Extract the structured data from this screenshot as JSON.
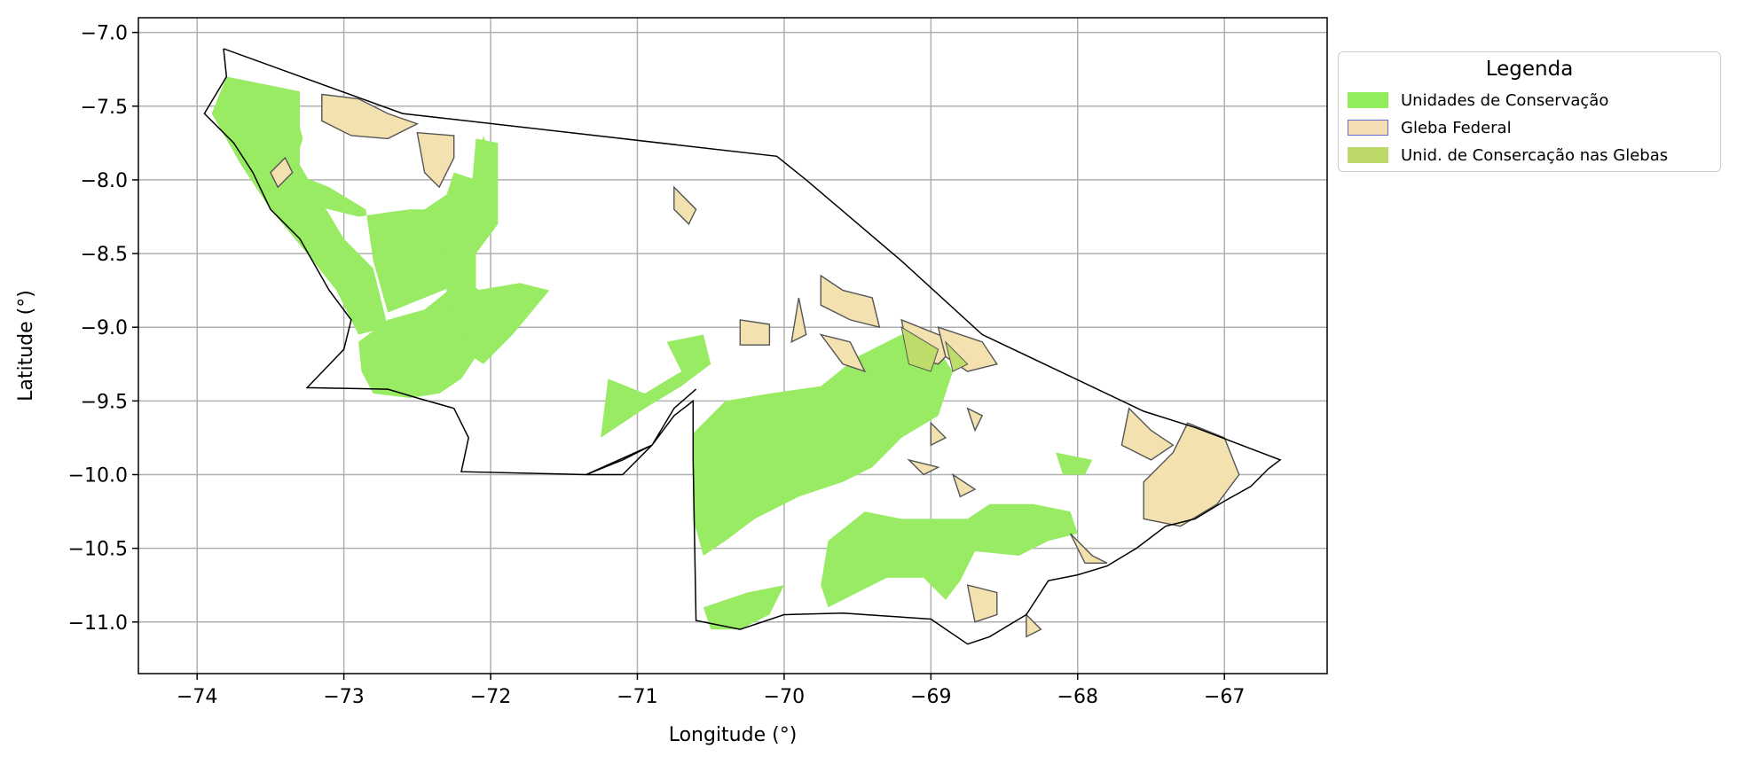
{
  "chart_data": {
    "type": "map",
    "xlabel": "Longitude (°)",
    "ylabel": "Latitude (°)",
    "xlim": [
      -74.4,
      -66.3
    ],
    "ylim": [
      -11.35,
      -6.9
    ],
    "xticks": [
      -74,
      -73,
      -72,
      -71,
      -70,
      -69,
      -68,
      -67
    ],
    "yticks": [
      -7.0,
      -7.5,
      -8.0,
      -8.5,
      -9.0,
      -9.5,
      -10.0,
      -10.5,
      -11.0
    ],
    "xtick_labels": [
      "−74",
      "−73",
      "−72",
      "−71",
      "−70",
      "−69",
      "−68",
      "−67"
    ],
    "ytick_labels": [
      "−7.0",
      "−7.5",
      "−8.0",
      "−8.5",
      "−9.0",
      "−9.5",
      "−10.0",
      "−10.5",
      "−11.0"
    ],
    "grid": true,
    "legend_placement": "outside-upper-right",
    "legend": {
      "title": "Legenda",
      "entries": [
        {
          "label": "Unidades de Conservação",
          "fill": "#90ee5a",
          "edge": "#90ee5a"
        },
        {
          "label": "Gleba Federal",
          "fill": "#f5deb3",
          "edge": "#6a6ae0"
        },
        {
          "label": "Unid. de Consercação nas Glebas",
          "fill": "#bcd96a",
          "edge": "#bcd96a"
        }
      ]
    },
    "colors": {
      "conservation": "#98eb63",
      "gleba": "#f3e1b0",
      "gleba_edge": "#555555",
      "overlap": "#bedc6a",
      "boundary": "#000000",
      "grid": "#b0b0b0"
    },
    "boundary": [
      [
        -73.82,
        -7.11
      ],
      [
        -72.6,
        -7.55
      ],
      [
        -70.05,
        -7.84
      ],
      [
        -69.85,
        -8.0
      ],
      [
        -69.2,
        -8.55
      ],
      [
        -68.65,
        -9.05
      ],
      [
        -67.55,
        -9.57
      ],
      [
        -67.2,
        -9.68
      ],
      [
        -66.62,
        -9.9
      ],
      [
        -66.7,
        -9.96
      ],
      [
        -66.82,
        -10.08
      ],
      [
        -67.0,
        -10.18
      ],
      [
        -67.2,
        -10.3
      ],
      [
        -67.4,
        -10.35
      ],
      [
        -67.6,
        -10.5
      ],
      [
        -67.8,
        -10.62
      ],
      [
        -68.0,
        -10.68
      ],
      [
        -68.2,
        -10.72
      ],
      [
        -68.35,
        -10.95
      ],
      [
        -68.6,
        -11.1
      ],
      [
        -68.75,
        -11.15
      ],
      [
        -69.0,
        -10.98
      ],
      [
        -69.3,
        -10.96
      ],
      [
        -69.6,
        -10.94
      ],
      [
        -70.0,
        -10.95
      ],
      [
        -70.3,
        -11.05
      ],
      [
        -70.6,
        -10.99
      ],
      [
        -70.62,
        -9.9
      ],
      [
        -70.62,
        -9.5
      ],
      [
        -70.75,
        -9.6
      ],
      [
        -70.9,
        -9.8
      ],
      [
        -71.1,
        -9.9
      ],
      [
        -71.35,
        -10.0
      ],
      [
        -71.1,
        -10.0
      ],
      [
        -70.9,
        -9.8
      ],
      [
        -70.75,
        -9.55
      ],
      [
        -70.6,
        -9.42
      ],
      [
        -70.75,
        -9.55
      ],
      [
        -70.9,
        -9.8
      ],
      [
        -71.35,
        -10.0
      ],
      [
        -72.2,
        -9.98
      ],
      [
        -72.15,
        -9.75
      ],
      [
        -72.25,
        -9.55
      ],
      [
        -72.5,
        -9.48
      ],
      [
        -72.7,
        -9.42
      ],
      [
        -73.25,
        -9.41
      ],
      [
        -73.0,
        -9.15
      ],
      [
        -72.95,
        -8.95
      ],
      [
        -73.1,
        -8.75
      ],
      [
        -73.3,
        -8.4
      ],
      [
        -73.5,
        -8.2
      ],
      [
        -73.62,
        -7.95
      ],
      [
        -73.75,
        -7.75
      ],
      [
        -73.95,
        -7.55
      ],
      [
        -73.8,
        -7.3
      ],
      [
        -73.82,
        -7.11
      ]
    ],
    "conservation_units": [
      [
        [
          -73.72,
          -7.32
        ],
        [
          -73.35,
          -7.45
        ],
        [
          -73.28,
          -7.72
        ],
        [
          -73.35,
          -7.95
        ],
        [
          -73.1,
          -8.05
        ],
        [
          -72.85,
          -8.2
        ],
        [
          -72.8,
          -8.55
        ],
        [
          -72.7,
          -8.9
        ],
        [
          -72.4,
          -8.78
        ],
        [
          -72.2,
          -8.7
        ],
        [
          -72.3,
          -8.5
        ],
        [
          -72.1,
          -8.35
        ],
        [
          -72.0,
          -8.05
        ],
        [
          -71.95,
          -7.95
        ],
        [
          -72.05,
          -7.7
        ],
        [
          -72.1,
          -8.0
        ],
        [
          -72.25,
          -7.95
        ],
        [
          -72.3,
          -8.1
        ],
        [
          -72.45,
          -8.2
        ],
        [
          -72.55,
          -8.2
        ],
        [
          -72.7,
          -8.22
        ],
        [
          -72.9,
          -8.25
        ],
        [
          -73.1,
          -8.2
        ],
        [
          -73.4,
          -8.1
        ],
        [
          -73.6,
          -7.9
        ],
        [
          -73.72,
          -7.7
        ],
        [
          -73.88,
          -7.5
        ],
        [
          -73.72,
          -7.32
        ]
      ],
      [
        [
          -72.05,
          -7.75
        ],
        [
          -71.95,
          -7.97
        ],
        [
          -72.05,
          -8.3
        ],
        [
          -72.2,
          -8.45
        ],
        [
          -72.3,
          -8.55
        ],
        [
          -72.15,
          -8.7
        ],
        [
          -72.0,
          -8.8
        ],
        [
          -71.8,
          -8.75
        ],
        [
          -71.75,
          -8.85
        ],
        [
          -71.95,
          -9.0
        ],
        [
          -72.1,
          -9.2
        ],
        [
          -72.2,
          -9.35
        ],
        [
          -72.35,
          -9.45
        ],
        [
          -72.55,
          -9.48
        ],
        [
          -72.8,
          -9.45
        ],
        [
          -72.88,
          -9.3
        ],
        [
          -72.9,
          -9.1
        ],
        [
          -72.7,
          -8.95
        ],
        [
          -72.45,
          -8.88
        ],
        [
          -72.25,
          -8.72
        ],
        [
          -72.15,
          -8.55
        ],
        [
          -72.05,
          -8.3
        ],
        [
          -72.0,
          -8.05
        ],
        [
          -72.05,
          -7.75
        ]
      ],
      [
        [
          -73.8,
          -7.3
        ],
        [
          -73.3,
          -7.4
        ],
        [
          -73.3,
          -7.9
        ],
        [
          -73.0,
          -8.4
        ],
        [
          -72.8,
          -8.6
        ],
        [
          -72.7,
          -9.0
        ],
        [
          -72.9,
          -9.05
        ],
        [
          -73.05,
          -8.75
        ],
        [
          -73.25,
          -8.5
        ],
        [
          -73.5,
          -8.2
        ],
        [
          -73.7,
          -7.9
        ],
        [
          -73.9,
          -7.55
        ],
        [
          -73.8,
          -7.3
        ]
      ],
      [
        [
          -72.1,
          -7.72
        ],
        [
          -71.95,
          -7.75
        ],
        [
          -71.95,
          -8.3
        ],
        [
          -72.1,
          -8.5
        ],
        [
          -72.1,
          -8.75
        ],
        [
          -71.8,
          -8.7
        ],
        [
          -71.6,
          -8.75
        ],
        [
          -71.85,
          -9.05
        ],
        [
          -72.05,
          -9.25
        ],
        [
          -72.2,
          -9.15
        ],
        [
          -72.1,
          -8.95
        ],
        [
          -72.3,
          -8.85
        ],
        [
          -72.3,
          -8.5
        ],
        [
          -72.15,
          -8.3
        ],
        [
          -72.1,
          -7.72
        ]
      ],
      [
        [
          -71.2,
          -9.35
        ],
        [
          -70.95,
          -9.45
        ],
        [
          -70.7,
          -9.3
        ],
        [
          -70.8,
          -9.1
        ],
        [
          -70.55,
          -9.05
        ],
        [
          -70.5,
          -9.25
        ],
        [
          -70.7,
          -9.4
        ],
        [
          -70.95,
          -9.55
        ],
        [
          -71.25,
          -9.75
        ],
        [
          -71.2,
          -9.35
        ]
      ],
      [
        [
          -70.62,
          -9.72
        ],
        [
          -70.4,
          -9.5
        ],
        [
          -70.1,
          -9.45
        ],
        [
          -69.75,
          -9.4
        ],
        [
          -69.5,
          -9.2
        ],
        [
          -69.2,
          -9.05
        ],
        [
          -68.95,
          -9.15
        ],
        [
          -68.85,
          -9.3
        ],
        [
          -68.95,
          -9.6
        ],
        [
          -69.2,
          -9.75
        ],
        [
          -69.4,
          -9.95
        ],
        [
          -69.6,
          -10.05
        ],
        [
          -69.9,
          -10.15
        ],
        [
          -70.2,
          -10.3
        ],
        [
          -70.4,
          -10.45
        ],
        [
          -70.55,
          -10.55
        ],
        [
          -70.62,
          -10.3
        ],
        [
          -70.62,
          -9.72
        ]
      ],
      [
        [
          -69.7,
          -10.45
        ],
        [
          -69.45,
          -10.25
        ],
        [
          -69.2,
          -10.3
        ],
        [
          -69.0,
          -10.3
        ],
        [
          -68.75,
          -10.3
        ],
        [
          -68.6,
          -10.2
        ],
        [
          -68.3,
          -10.2
        ],
        [
          -68.05,
          -10.25
        ],
        [
          -68.0,
          -10.4
        ],
        [
          -68.2,
          -10.45
        ],
        [
          -68.4,
          -10.55
        ],
        [
          -68.7,
          -10.52
        ],
        [
          -68.8,
          -10.72
        ],
        [
          -68.9,
          -10.85
        ],
        [
          -69.05,
          -10.7
        ],
        [
          -69.3,
          -10.7
        ],
        [
          -69.5,
          -10.8
        ],
        [
          -69.7,
          -10.9
        ],
        [
          -69.75,
          -10.75
        ],
        [
          -69.7,
          -10.45
        ]
      ],
      [
        [
          -70.55,
          -10.9
        ],
        [
          -70.5,
          -11.05
        ],
        [
          -70.3,
          -11.05
        ],
        [
          -70.1,
          -10.95
        ],
        [
          -70.0,
          -10.75
        ],
        [
          -70.25,
          -10.8
        ],
        [
          -70.55,
          -10.9
        ]
      ],
      [
        [
          -68.15,
          -9.85
        ],
        [
          -67.9,
          -9.9
        ],
        [
          -67.95,
          -10.0
        ],
        [
          -68.1,
          -10.0
        ],
        [
          -68.15,
          -9.85
        ]
      ]
    ],
    "federal_glebas": [
      [
        [
          -73.15,
          -7.42
        ],
        [
          -72.9,
          -7.45
        ],
        [
          -72.7,
          -7.55
        ],
        [
          -72.5,
          -7.62
        ],
        [
          -72.7,
          -7.72
        ],
        [
          -72.95,
          -7.7
        ],
        [
          -73.15,
          -7.6
        ],
        [
          -73.15,
          -7.42
        ]
      ],
      [
        [
          -72.5,
          -7.68
        ],
        [
          -72.25,
          -7.7
        ],
        [
          -72.25,
          -7.85
        ],
        [
          -72.35,
          -8.05
        ],
        [
          -72.45,
          -7.95
        ],
        [
          -72.5,
          -7.68
        ]
      ],
      [
        [
          -73.4,
          -7.85
        ],
        [
          -73.5,
          -7.95
        ],
        [
          -73.45,
          -8.05
        ],
        [
          -73.35,
          -7.95
        ],
        [
          -73.4,
          -7.85
        ]
      ],
      [
        [
          -69.75,
          -8.65
        ],
        [
          -69.6,
          -8.75
        ],
        [
          -69.4,
          -8.8
        ],
        [
          -69.35,
          -9.0
        ],
        [
          -69.55,
          -8.95
        ],
        [
          -69.75,
          -8.85
        ],
        [
          -69.75,
          -8.65
        ]
      ],
      [
        [
          -70.3,
          -8.95
        ],
        [
          -70.1,
          -8.98
        ],
        [
          -70.1,
          -9.12
        ],
        [
          -70.3,
          -9.12
        ],
        [
          -70.3,
          -8.95
        ]
      ],
      [
        [
          -69.9,
          -8.8
        ],
        [
          -69.95,
          -9.1
        ],
        [
          -69.85,
          -9.05
        ],
        [
          -69.9,
          -8.8
        ]
      ],
      [
        [
          -69.75,
          -9.05
        ],
        [
          -69.55,
          -9.1
        ],
        [
          -69.45,
          -9.3
        ],
        [
          -69.6,
          -9.25
        ],
        [
          -69.75,
          -9.05
        ]
      ],
      [
        [
          -69.2,
          -8.95
        ],
        [
          -68.95,
          -9.05
        ],
        [
          -68.8,
          -9.1
        ],
        [
          -68.95,
          -9.25
        ],
        [
          -69.15,
          -9.2
        ],
        [
          -69.2,
          -8.95
        ]
      ],
      [
        [
          -68.95,
          -9.0
        ],
        [
          -68.65,
          -9.1
        ],
        [
          -68.55,
          -9.25
        ],
        [
          -68.75,
          -9.3
        ],
        [
          -68.9,
          -9.2
        ],
        [
          -68.95,
          -9.0
        ]
      ],
      [
        [
          -67.65,
          -9.55
        ],
        [
          -67.5,
          -9.7
        ],
        [
          -67.35,
          -9.8
        ],
        [
          -67.5,
          -9.9
        ],
        [
          -67.7,
          -9.8
        ],
        [
          -67.65,
          -9.55
        ]
      ],
      [
        [
          -67.25,
          -9.65
        ],
        [
          -67.0,
          -9.75
        ],
        [
          -66.9,
          -10.0
        ],
        [
          -67.05,
          -10.2
        ],
        [
          -67.3,
          -10.35
        ],
        [
          -67.55,
          -10.3
        ],
        [
          -67.55,
          -10.05
        ],
        [
          -67.35,
          -9.85
        ],
        [
          -67.25,
          -9.65
        ]
      ],
      [
        [
          -68.75,
          -10.75
        ],
        [
          -68.55,
          -10.8
        ],
        [
          -68.55,
          -10.95
        ],
        [
          -68.7,
          -11.0
        ],
        [
          -68.75,
          -10.75
        ]
      ],
      [
        [
          -68.35,
          -10.95
        ],
        [
          -68.25,
          -11.05
        ],
        [
          -68.35,
          -11.1
        ],
        [
          -68.35,
          -10.95
        ]
      ],
      [
        [
          -68.75,
          -9.55
        ],
        [
          -68.65,
          -9.6
        ],
        [
          -68.7,
          -9.7
        ],
        [
          -68.75,
          -9.55
        ]
      ],
      [
        [
          -69.0,
          -9.65
        ],
        [
          -68.9,
          -9.75
        ],
        [
          -69.0,
          -9.8
        ],
        [
          -69.0,
          -9.65
        ]
      ],
      [
        [
          -69.15,
          -9.9
        ],
        [
          -69.05,
          -10.0
        ],
        [
          -68.95,
          -9.95
        ],
        [
          -69.15,
          -9.9
        ]
      ],
      [
        [
          -68.85,
          -10.0
        ],
        [
          -68.7,
          -10.1
        ],
        [
          -68.8,
          -10.15
        ],
        [
          -68.85,
          -10.0
        ]
      ],
      [
        [
          -70.75,
          -8.05
        ],
        [
          -70.7,
          -8.1
        ],
        [
          -70.6,
          -8.2
        ],
        [
          -70.65,
          -8.3
        ],
        [
          -70.75,
          -8.2
        ],
        [
          -70.75,
          -8.05
        ]
      ],
      [
        [
          -68.05,
          -10.4
        ],
        [
          -67.9,
          -10.55
        ],
        [
          -67.8,
          -10.6
        ],
        [
          -67.95,
          -10.6
        ],
        [
          -68.05,
          -10.4
        ]
      ]
    ],
    "overlap_areas": [
      [
        [
          -69.2,
          -9.0
        ],
        [
          -68.95,
          -9.15
        ],
        [
          -69.0,
          -9.3
        ],
        [
          -69.15,
          -9.25
        ],
        [
          -69.2,
          -9.0
        ]
      ],
      [
        [
          -68.9,
          -9.1
        ],
        [
          -68.75,
          -9.25
        ],
        [
          -68.85,
          -9.3
        ],
        [
          -68.9,
          -9.1
        ]
      ]
    ]
  }
}
